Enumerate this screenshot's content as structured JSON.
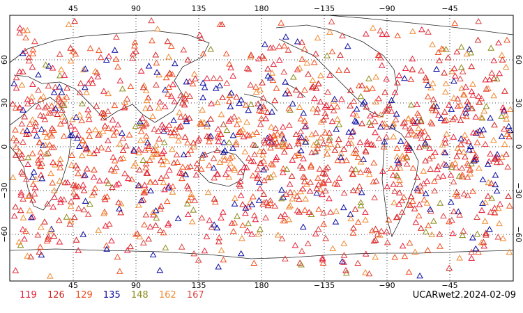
{
  "map": {
    "lon_ticks_top": [
      "45",
      "90",
      "135",
      "180",
      "−135",
      "−90",
      "−45"
    ],
    "lon_ticks_bottom": [
      "45",
      "90",
      "135",
      "180",
      "−135",
      "−90",
      "−45"
    ],
    "lat_ticks_left": [
      "60",
      "30",
      "0",
      "−30",
      "−60"
    ],
    "lat_ticks_right": [
      "60",
      "30",
      "0",
      "−30",
      "−60"
    ],
    "grid": "dotted every 45° lon / 30° lat",
    "marker": "open-triangle",
    "coastline_color": "#000000"
  },
  "legend": [
    {
      "label": "119",
      "color": "#e8203a"
    },
    {
      "label": "126",
      "color": "#d62020"
    },
    {
      "label": "129",
      "color": "#f05020"
    },
    {
      "label": "135",
      "color": "#0a0aa0"
    },
    {
      "label": "148",
      "color": "#8a8a18"
    },
    {
      "label": "162",
      "color": "#f08a30"
    },
    {
      "label": "167",
      "color": "#e04040"
    }
  ],
  "stamp": "UCARwet2.2024-02-09"
}
